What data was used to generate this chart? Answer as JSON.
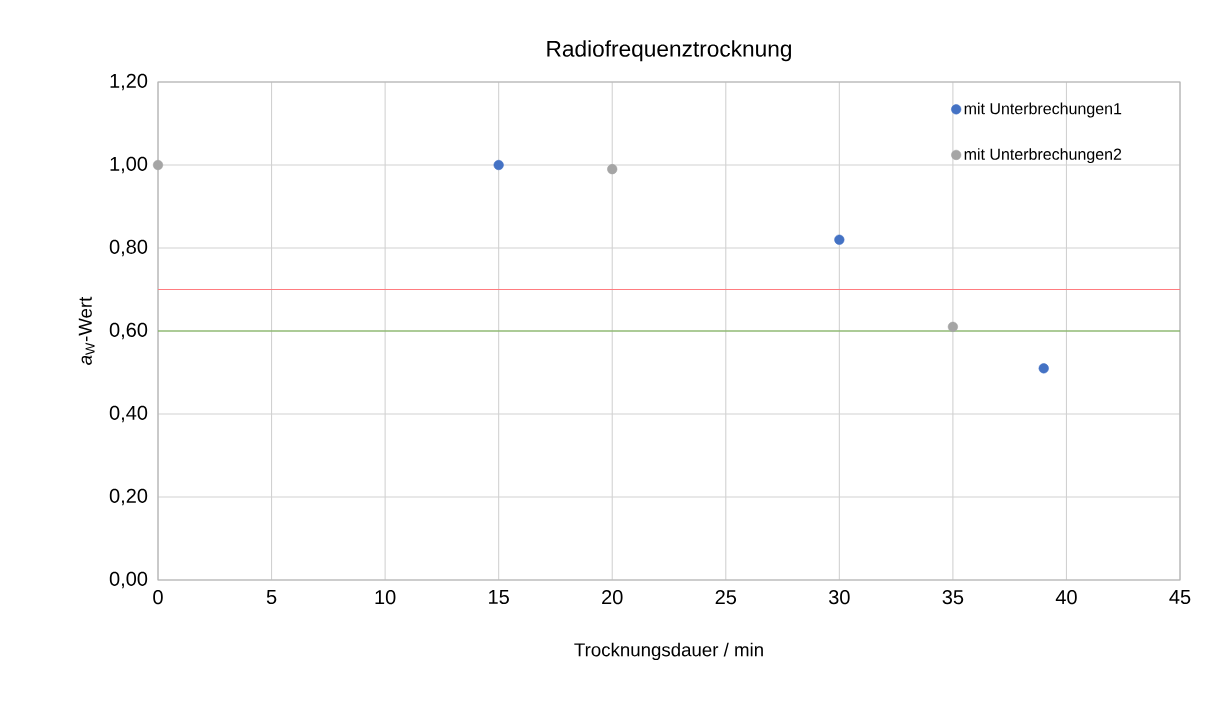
{
  "chart_data": {
    "type": "scatter",
    "title": "Radiofrequenztrocknung",
    "xlabel": "Trocknungsdauer / min",
    "ylabel": "*a*$_{W}$-Wert",
    "series": [
      {
        "name": "mit Unterbrechungen1",
        "color": "#4472c4",
        "x": [
          15,
          30,
          39
        ],
        "values": [
          1.0,
          0.82,
          0.51
        ]
      },
      {
        "name": "mit Unterbrechungen2",
        "color": "#a5a5a5",
        "x": [
          0,
          20,
          35
        ],
        "values": [
          1.0,
          0.99,
          0.61
        ]
      }
    ],
    "xlim": [
      0,
      45
    ],
    "xticks": [
      0,
      5,
      10,
      15,
      20,
      25,
      30,
      35,
      40,
      45
    ],
    "ylim": [
      0,
      1.2
    ],
    "yticks": [
      {
        "value": 0,
        "label": "0,00"
      },
      {
        "value": 0.2,
        "label": "0,20"
      },
      {
        "value": 0.4,
        "label": "0,40"
      },
      {
        "value": 0.6,
        "label": "0,60"
      },
      {
        "value": 0.8,
        "label": "0,80"
      },
      {
        "value": 1.0,
        "label": "1,00"
      },
      {
        "value": 1.2,
        "label": "1,20"
      }
    ],
    "ref_lines": [
      {
        "axis": "y",
        "value": 0.7,
        "color": "#ff7c80"
      },
      {
        "axis": "y",
        "value": 0.6,
        "color": "#70ad47"
      }
    ],
    "grid": true,
    "legend": "top right"
  }
}
